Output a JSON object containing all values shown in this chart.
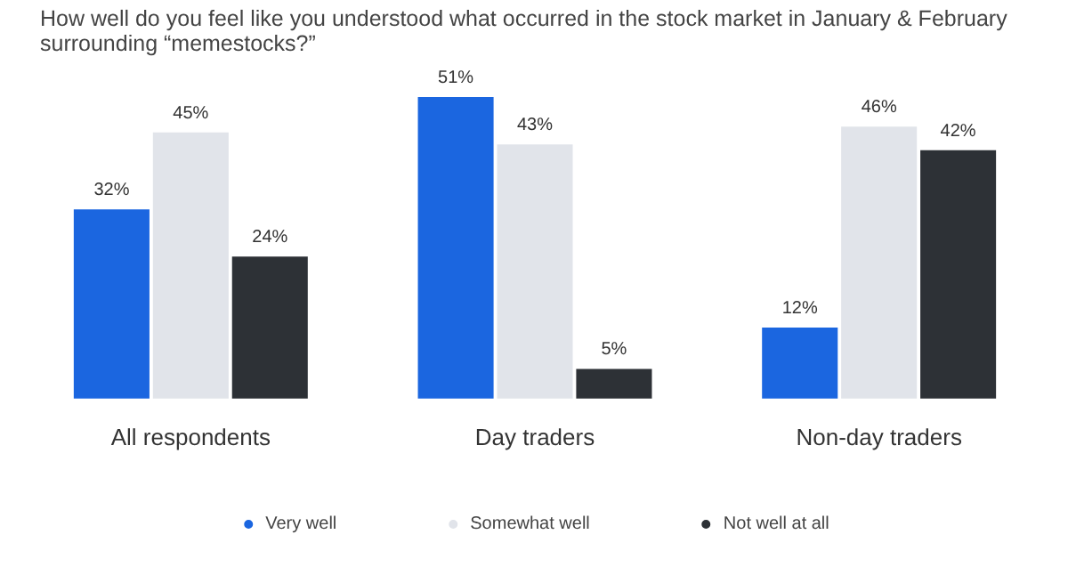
{
  "chart_data": {
    "type": "bar",
    "title": "How well do you feel like you understood what occurred in the stock market in January & February surrounding “memestocks?”",
    "categories": [
      "All respondents",
      "Day traders",
      "Non-day traders"
    ],
    "series": [
      {
        "name": "Very well",
        "color": "#1b66e0",
        "values": [
          32,
          51,
          12
        ],
        "value_labels": [
          "32%",
          "51%",
          "12%"
        ]
      },
      {
        "name": "Somewhat well",
        "color": "#e1e4ea",
        "values": [
          45,
          43,
          46
        ],
        "value_labels": [
          "45%",
          "43%",
          "46%"
        ]
      },
      {
        "name": "Not well at all",
        "color": "#2d3136",
        "values": [
          24,
          5,
          42
        ],
        "value_labels": [
          "24%",
          "5%",
          "42%"
        ]
      }
    ],
    "legend": "bottom",
    "grid": false
  }
}
